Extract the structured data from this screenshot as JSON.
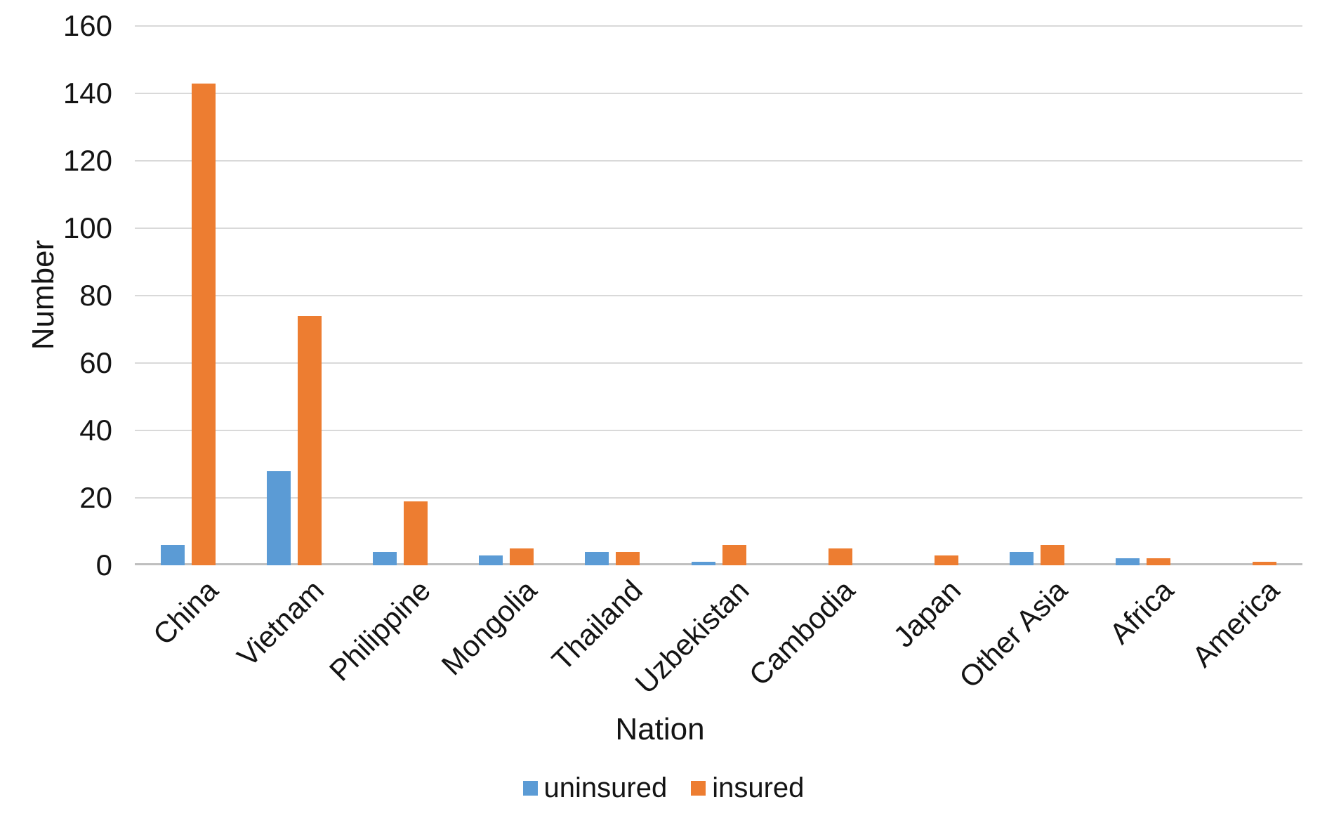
{
  "chart_data": {
    "type": "bar",
    "categories": [
      "China",
      "Vietnam",
      "Philippine",
      "Mongolia",
      "Thailand",
      "Uzbekistan",
      "Cambodia",
      "Japan",
      "Other Asia",
      "Africa",
      "America"
    ],
    "series": [
      {
        "name": "uninsured",
        "color": "#5B9BD5",
        "values": [
          6,
          28,
          4,
          3,
          4,
          1,
          0,
          0,
          4,
          2,
          0
        ]
      },
      {
        "name": "insured",
        "color": "#ED7D31",
        "values": [
          143,
          74,
          19,
          5,
          4,
          6,
          5,
          3,
          6,
          2,
          1
        ]
      }
    ],
    "xlabel": "Nation",
    "ylabel": "Number",
    "ylim": [
      0,
      160
    ],
    "yticks": [
      0,
      20,
      40,
      60,
      80,
      100,
      120,
      140,
      160
    ],
    "grid": true,
    "legend_position": "bottom",
    "colors": {
      "uninsured": "#5B9BD5",
      "insured": "#ED7D31",
      "gridline": "#d9d9d9",
      "axis_line": "#bfbfbf",
      "text": "#141414"
    }
  },
  "legend": {
    "items": [
      {
        "label": "uninsured",
        "color": "#5B9BD5"
      },
      {
        "label": "insured",
        "color": "#ED7D31"
      }
    ]
  }
}
